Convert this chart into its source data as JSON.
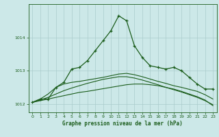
{
  "title": "Graphe pression niveau de la mer (hPa)",
  "bg_color": "#cce8e8",
  "grid_color": "#aacccc",
  "line_color": "#1a5c1a",
  "xlim": [
    -0.5,
    23.5
  ],
  "ylim": [
    1011.75,
    1015.0
  ],
  "yticks": [
    1012,
    1013,
    1014
  ],
  "xticks": [
    0,
    1,
    2,
    3,
    4,
    5,
    6,
    7,
    8,
    9,
    10,
    11,
    12,
    13,
    14,
    15,
    16,
    17,
    18,
    19,
    20,
    21,
    22,
    23
  ],
  "series_main": [
    1012.05,
    1012.15,
    1012.15,
    1012.5,
    1012.65,
    1013.05,
    1013.1,
    1013.3,
    1013.6,
    1013.9,
    1014.2,
    1014.65,
    1014.5,
    1013.75,
    1013.4,
    1013.15,
    1013.1,
    1013.05,
    1013.1,
    1013.0,
    1012.8,
    1012.6,
    1012.45,
    1012.45
  ],
  "series_line1": [
    1012.05,
    1012.1,
    1012.15,
    1012.2,
    1012.25,
    1012.3,
    1012.35,
    1012.38,
    1012.42,
    1012.46,
    1012.5,
    1012.54,
    1012.58,
    1012.6,
    1012.6,
    1012.58,
    1012.55,
    1012.5,
    1012.45,
    1012.38,
    1012.3,
    1012.22,
    1012.12,
    1011.95
  ],
  "series_line2": [
    1012.05,
    1012.12,
    1012.2,
    1012.3,
    1012.4,
    1012.48,
    1012.55,
    1012.62,
    1012.68,
    1012.74,
    1012.78,
    1012.82,
    1012.82,
    1012.78,
    1012.72,
    1012.65,
    1012.58,
    1012.5,
    1012.43,
    1012.36,
    1012.28,
    1012.2,
    1012.1,
    1011.98
  ],
  "series_line3": [
    1012.05,
    1012.15,
    1012.3,
    1012.5,
    1012.6,
    1012.65,
    1012.68,
    1012.72,
    1012.76,
    1012.8,
    1012.85,
    1012.9,
    1012.92,
    1012.88,
    1012.82,
    1012.75,
    1012.68,
    1012.62,
    1012.55,
    1012.5,
    1012.44,
    1012.38,
    1012.28,
    1012.15
  ]
}
